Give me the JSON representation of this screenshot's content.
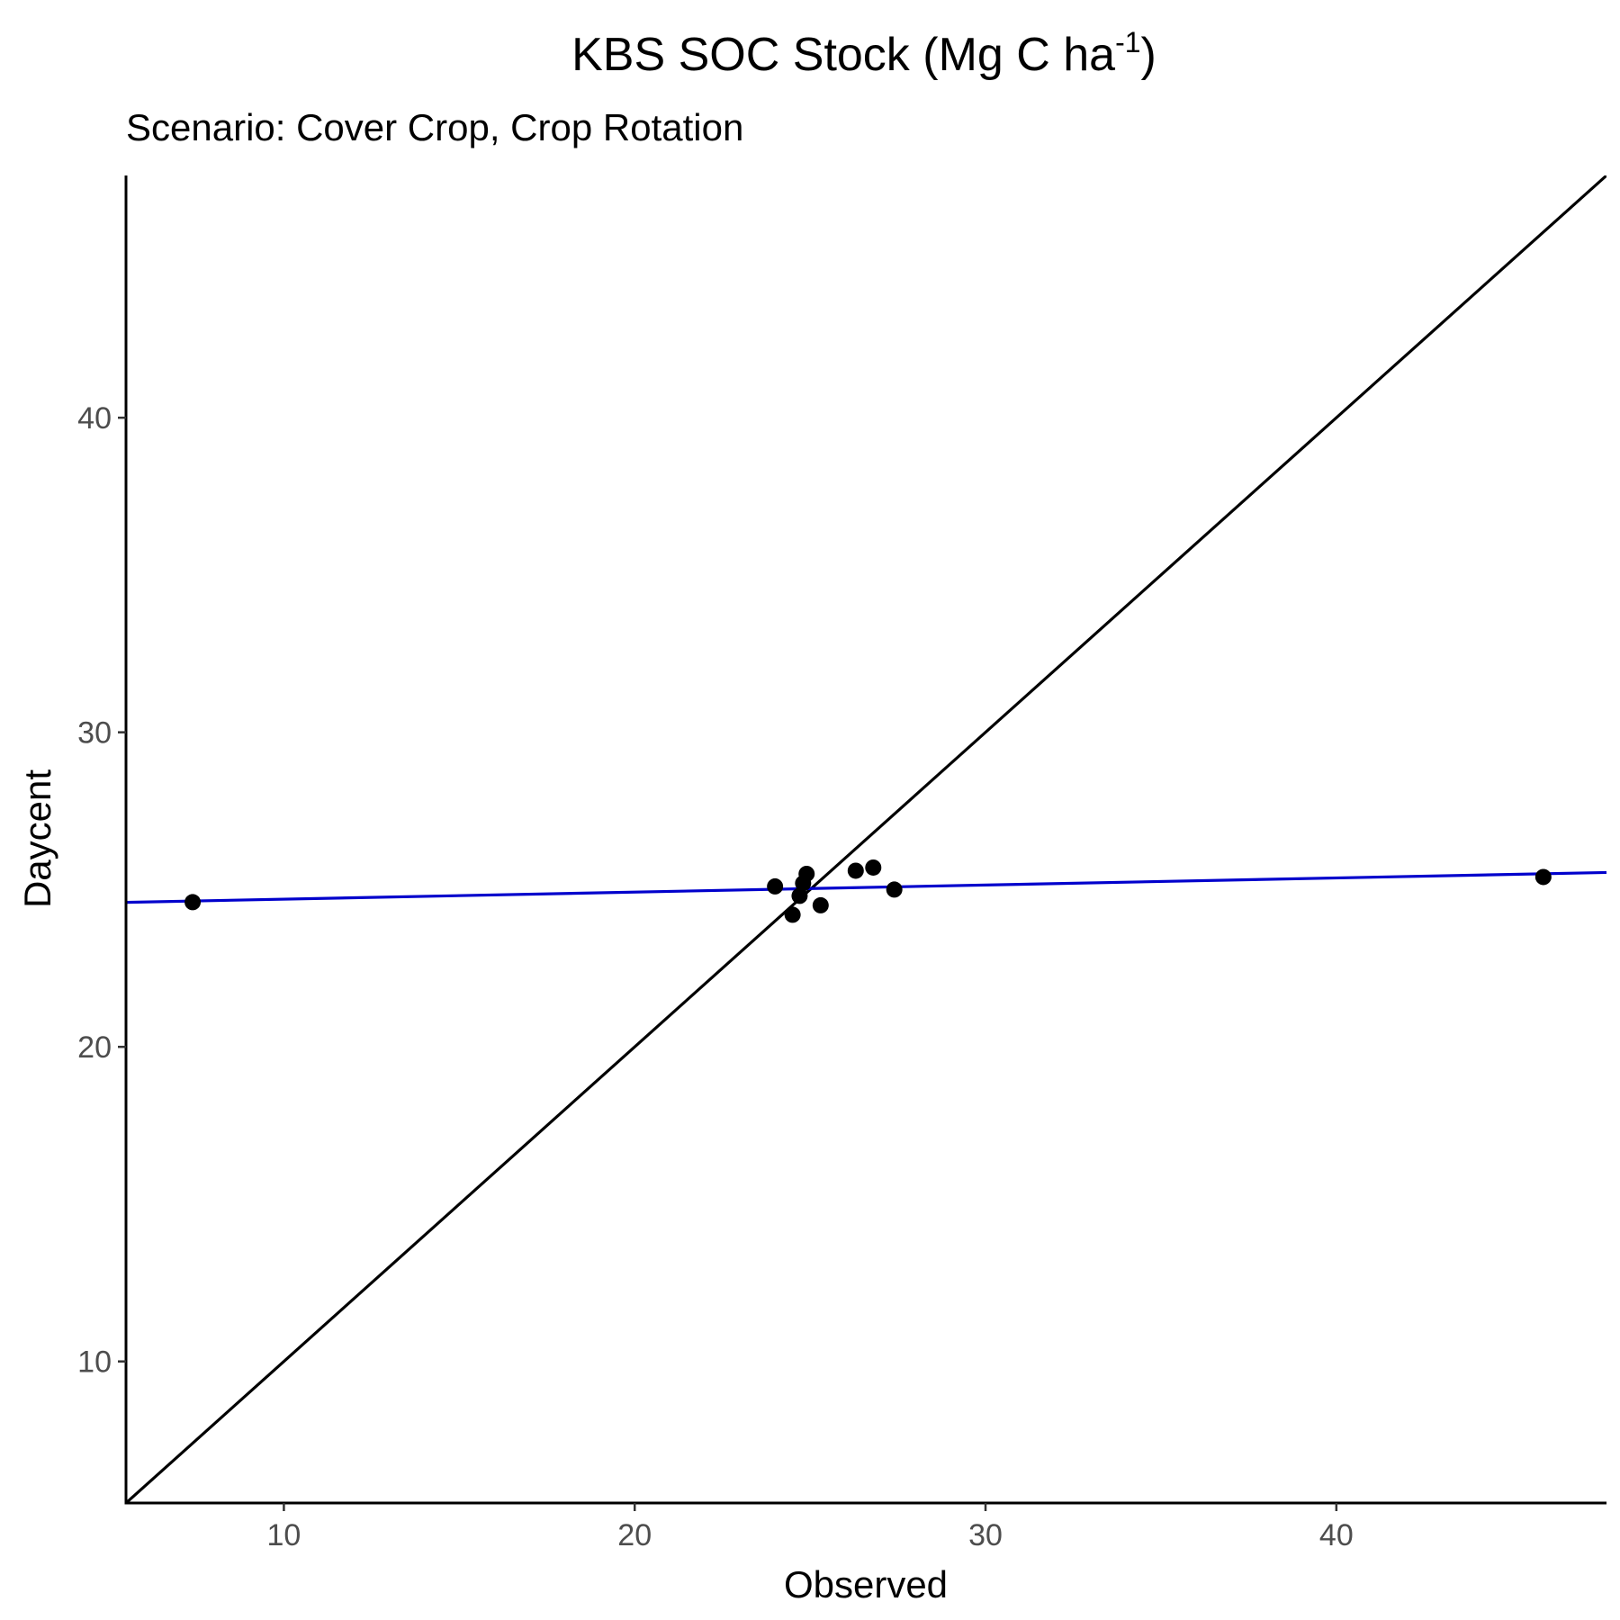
{
  "chart_data": {
    "type": "scatter",
    "title": "KBS SOC Stock (Mg C ha",
    "title_superscript": "-1",
    "title_suffix": ")",
    "subtitle": "Scenario: Cover Crop, Crop Rotation",
    "xlabel": "Observed",
    "ylabel": "Daycent",
    "xlim": [
      5.5,
      47.7
    ],
    "ylim": [
      5.5,
      47.7
    ],
    "x_ticks": [
      10,
      20,
      30,
      40
    ],
    "y_ticks": [
      10,
      20,
      30,
      40
    ],
    "x_tick_labels": [
      "10",
      "20",
      "30",
      "40"
    ],
    "y_tick_labels": [
      "10",
      "20",
      "30",
      "40"
    ],
    "grid": false,
    "series": [
      {
        "points": [
          {
            "x": 7.4,
            "y": 24.6
          },
          {
            "x": 24.0,
            "y": 25.1
          },
          {
            "x": 24.5,
            "y": 24.2
          },
          {
            "x": 24.7,
            "y": 24.8
          },
          {
            "x": 24.8,
            "y": 25.2
          },
          {
            "x": 24.9,
            "y": 25.5
          },
          {
            "x": 25.3,
            "y": 24.5
          },
          {
            "x": 26.3,
            "y": 25.6
          },
          {
            "x": 26.8,
            "y": 25.7
          },
          {
            "x": 27.4,
            "y": 25.0
          },
          {
            "x": 45.9,
            "y": 25.4
          }
        ],
        "color": "#000000"
      }
    ],
    "reference_line": {
      "type": "1:1",
      "color": "#000000"
    },
    "fit_line": {
      "intercept": 24.47,
      "slope": 0.0225,
      "color": "#0000cc"
    }
  }
}
